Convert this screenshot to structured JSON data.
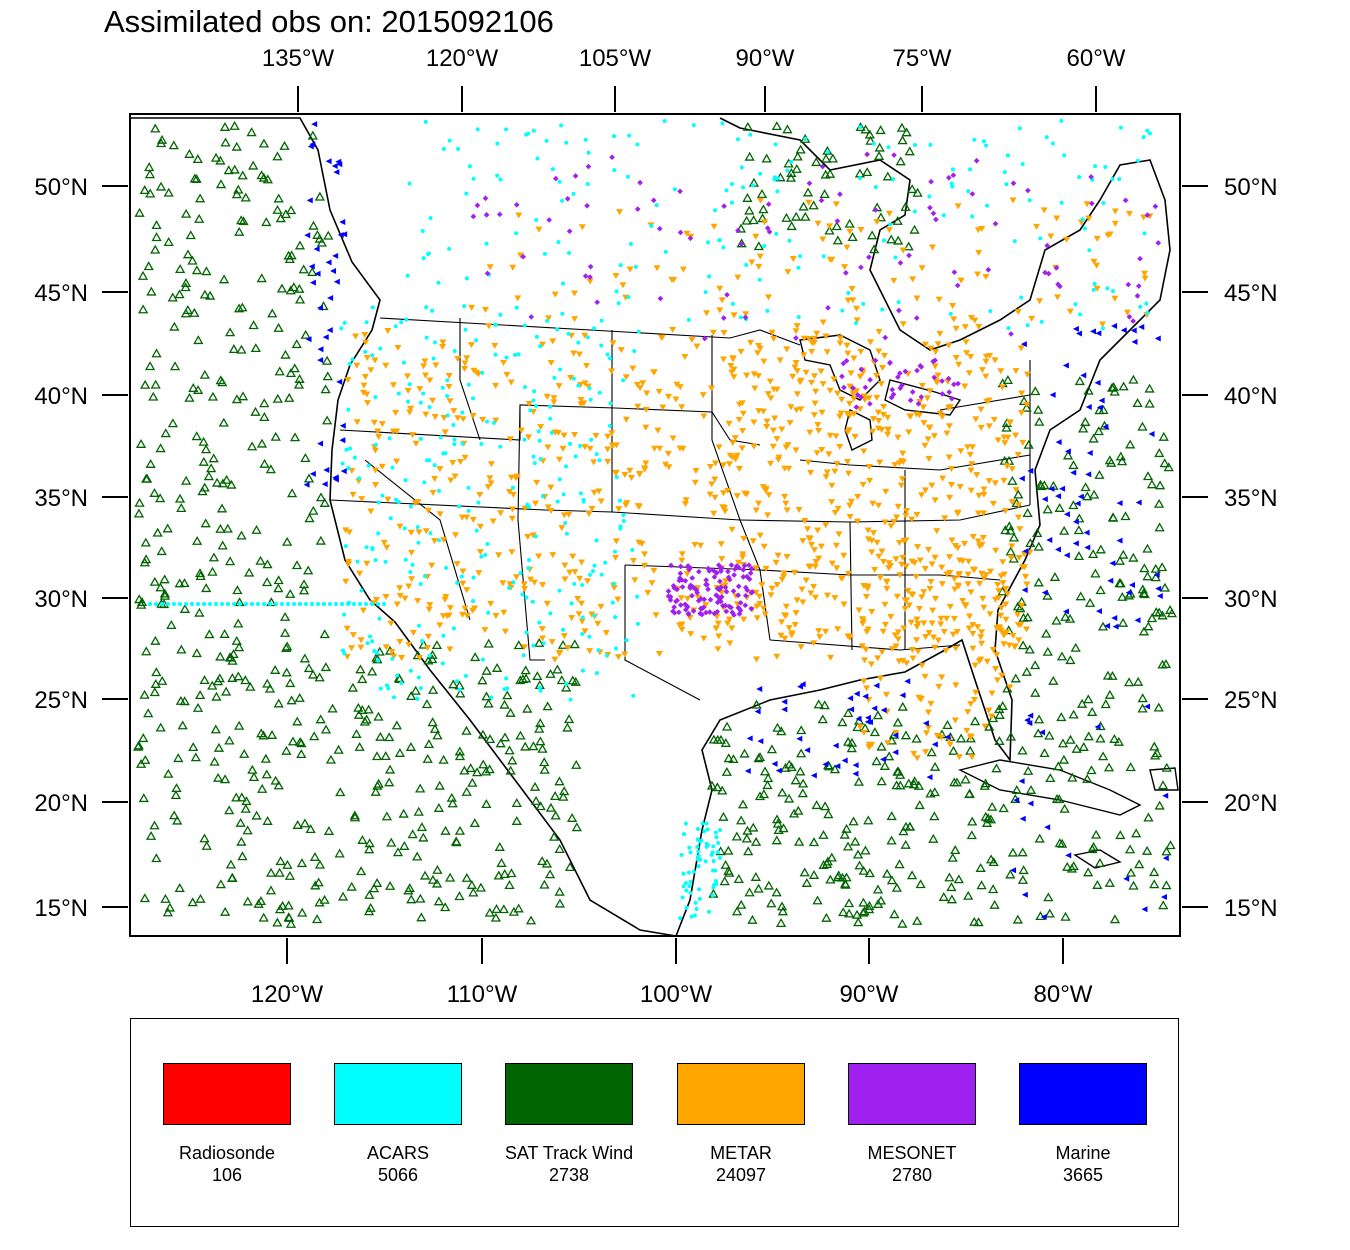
{
  "title": "Assimilated obs on: 2015092106",
  "map": {
    "lon_range": [
      -128,
      -73
    ],
    "lat_range": [
      14,
      53.5
    ],
    "top_ticks": [
      "135°W",
      "120°W",
      "105°W",
      "90°W",
      "75°W",
      "60°W"
    ],
    "bottom_ticks": [
      "120°W",
      "110°W",
      "100°W",
      "90°W",
      "80°W"
    ],
    "left_ticks": [
      "50°N",
      "45°N",
      "40°N",
      "35°N",
      "30°N",
      "25°N",
      "20°N",
      "15°N"
    ],
    "right_ticks": [
      "50°N",
      "45°N",
      "40°N",
      "35°N",
      "30°N",
      "25°N",
      "20°N",
      "15°N"
    ]
  },
  "legend": [
    {
      "name": "Radiosonde",
      "count": "106",
      "color": "#ff0000"
    },
    {
      "name": "ACARS",
      "count": "5066",
      "color": "#00ffff"
    },
    {
      "name": "SAT Track Wind",
      "count": "2738",
      "color": "#006400"
    },
    {
      "name": "METAR",
      "count": "24097",
      "color": "#ffa500"
    },
    {
      "name": "MESONET",
      "count": "2780",
      "color": "#a020f0"
    },
    {
      "name": "Marine",
      "count": "3665",
      "color": "#0000ff"
    }
  ]
}
